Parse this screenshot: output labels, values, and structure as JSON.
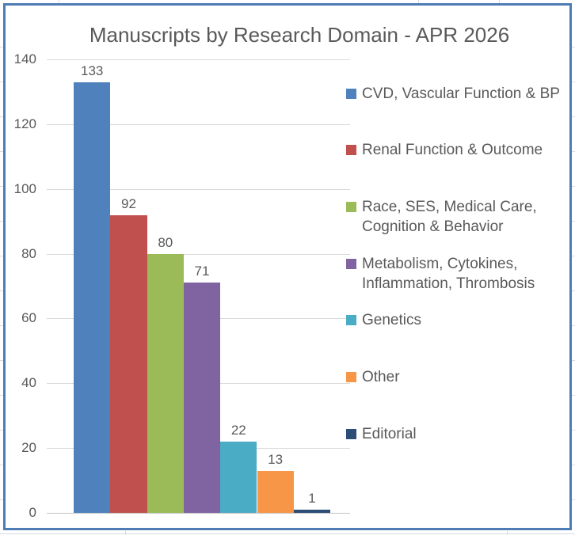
{
  "chart_data": {
    "type": "bar",
    "title": "Manuscripts by Research Domain - APR 2026",
    "categories": [
      "CVD, Vascular Function & BP",
      "Renal Function & Outcome",
      "Race, SES, Medical Care,\nCognition & Behavior",
      "Metabolism, Cytokines,\nInflammation, Thrombosis",
      "Genetics",
      "Other",
      "Editorial"
    ],
    "values": [
      133,
      92,
      80,
      71,
      22,
      13,
      1
    ],
    "series_colors": [
      "#4F81BD",
      "#C0504D",
      "#9BBB59",
      "#8064A2",
      "#4BACC6",
      "#F79646",
      "#2C4D75"
    ],
    "data_labels": [
      133,
      92,
      80,
      71,
      22,
      13,
      1
    ],
    "xlabel": "",
    "ylabel": "",
    "ylim": [
      0,
      140
    ],
    "ytick_step": 20,
    "yticks": [
      0,
      20,
      40,
      60,
      80,
      100,
      120,
      140
    ],
    "grid": true,
    "legend_position": "right"
  },
  "colors": {
    "chart_border": "#4e7cb5",
    "gridline": "#d9d9d9",
    "axis_line": "#c3c3c3",
    "text": "#595959",
    "sheet_gridline": "#d4dbe6"
  }
}
